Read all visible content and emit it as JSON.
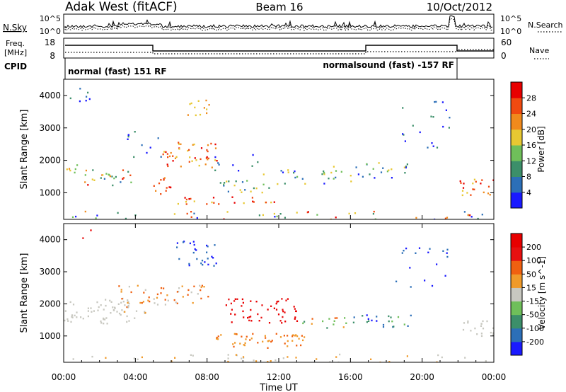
{
  "header": {
    "station": "Adak West (fitACF)",
    "beam": "Beam 16",
    "date": "10/Oct/2012"
  },
  "noise_panel": {
    "left_label": "N.Sky",
    "right_label": "N.Search",
    "left_ticks": [
      "10^5",
      "10^0"
    ],
    "right_ticks": [
      "10^5",
      "10^0"
    ]
  },
  "freq_panel": {
    "left_label_line1": "Freq.",
    "left_label_line2": "[MHz]",
    "right_label": "Nave",
    "cpid_label": "CPID",
    "left_ticks": [
      "18",
      "8"
    ],
    "right_ticks": [
      "60",
      "0"
    ],
    "modes": [
      {
        "text": "normal (fast) 151 RF"
      },
      {
        "text": "normalsound (fast) -157 RF"
      }
    ]
  },
  "time_axis": {
    "label": "Time UT",
    "ticks": [
      "00:00",
      "04:00",
      "08:00",
      "12:00",
      "16:00",
      "20:00",
      "00:00"
    ]
  },
  "range_ticks": [
    "1000",
    "2000",
    "3000",
    "4000"
  ],
  "chart_data": [
    {
      "type": "heatmap",
      "title": "Beam 16",
      "xlabel": "Time UT",
      "ylabel": "Slant Range [km]",
      "xlim": [
        "00:00",
        "24:00"
      ],
      "ylim": [
        180,
        4500
      ],
      "colorbar": {
        "label": "Power [dB]",
        "ticks": [
          "4",
          "8",
          "12",
          "16",
          "20",
          "24",
          "28"
        ],
        "colors": [
          "#1a1aff",
          "#2c6fb8",
          "#3c8f6a",
          "#6fbf5a",
          "#e8c832",
          "#f08a1c",
          "#f04a10",
          "#e80000"
        ]
      },
      "features": [
        {
          "t_start": 0.0,
          "t_end": 3.8,
          "range_start": 1250,
          "range_end": 1900,
          "level": "strong"
        },
        {
          "t_start": 5.0,
          "t_end": 8.6,
          "range_start": 950,
          "range_end": 2700,
          "level": "strong"
        },
        {
          "t_start": 6.5,
          "t_end": 8.3,
          "range_start": 3400,
          "range_end": 4000,
          "level": "moderate"
        },
        {
          "t_start": 8.5,
          "t_end": 16.0,
          "range_start": 800,
          "range_end": 1800,
          "level": "moderate"
        },
        {
          "t_start": 12.0,
          "t_end": 20.0,
          "range_start": 1200,
          "range_end": 2000,
          "level": "moderate"
        },
        {
          "t_start": 22.0,
          "t_end": 24.0,
          "range_start": 950,
          "range_end": 1450,
          "level": "strong"
        }
      ]
    },
    {
      "type": "heatmap",
      "title": "Beam 16",
      "xlabel": "Time UT",
      "ylabel": "Slant Range [km]",
      "xlim": [
        "00:00",
        "24:00"
      ],
      "ylim": [
        180,
        4500
      ],
      "colorbar": {
        "label": "Velocity [m s^-1]",
        "ticks": [
          "200",
          "100",
          "50",
          "15",
          "-15",
          "-50",
          "-100",
          "-200"
        ],
        "colors": [
          "#1a1aff",
          "#2c6fb8",
          "#3c8f6a",
          "#6fbf5a",
          "#c8c8c0",
          "#f09a2a",
          "#f06010",
          "#e81010",
          "#e80000"
        ]
      },
      "features": [
        {
          "t_start": 0.0,
          "t_end": 5.0,
          "range_start": 1300,
          "range_end": 2600,
          "velocity_class": "near zero"
        },
        {
          "t_start": 6.0,
          "t_end": 8.5,
          "range_start": 3200,
          "range_end": 4000,
          "velocity_class": "positive (toward)"
        },
        {
          "t_start": 9.0,
          "t_end": 13.0,
          "range_start": 1300,
          "range_end": 2300,
          "velocity_class": "negative (away)"
        },
        {
          "t_start": 8.0,
          "t_end": 13.5,
          "range_start": 650,
          "range_end": 1100,
          "velocity_class": "negative (away)"
        },
        {
          "t_start": 14.0,
          "t_end": 19.0,
          "range_start": 1250,
          "range_end": 1700,
          "velocity_class": "positive (toward)"
        },
        {
          "t_start": 22.0,
          "t_end": 24.0,
          "range_start": 1000,
          "range_end": 1500,
          "velocity_class": "near zero"
        }
      ]
    }
  ]
}
